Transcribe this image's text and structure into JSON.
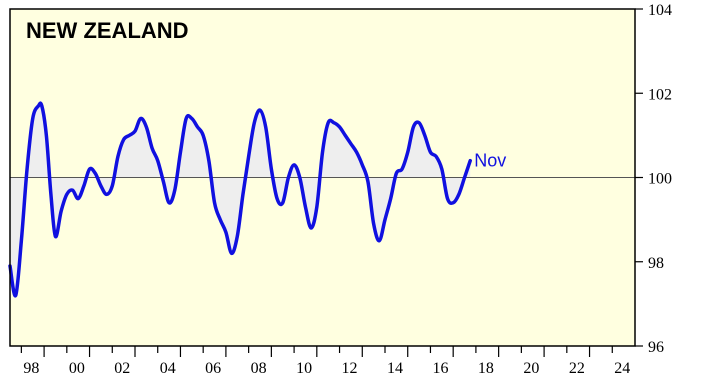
{
  "chart_data": {
    "type": "line",
    "title": "NEW ZEALAND",
    "end_label": "Nov",
    "baseline": 100,
    "ylim": [
      96,
      104
    ],
    "y_ticks": [
      96,
      98,
      100,
      102,
      104
    ],
    "xlim": [
      1997.5,
      2025
    ],
    "x_ticks": [
      {
        "year": 1998,
        "label": "98"
      },
      {
        "year": 2000,
        "label": "00"
      },
      {
        "year": 2002,
        "label": "02"
      },
      {
        "year": 2004,
        "label": "04"
      },
      {
        "year": 2006,
        "label": "06"
      },
      {
        "year": 2008,
        "label": "08"
      },
      {
        "year": 2010,
        "label": "10"
      },
      {
        "year": 2012,
        "label": "12"
      },
      {
        "year": 2014,
        "label": "14"
      },
      {
        "year": 2016,
        "label": "16"
      },
      {
        "year": 2018,
        "label": "18"
      },
      {
        "year": 2020,
        "label": "20"
      },
      {
        "year": 2022,
        "label": "22"
      },
      {
        "year": 2024,
        "label": "24"
      }
    ],
    "colors": {
      "plot_background": "#ffffe0",
      "line": "#1010e0",
      "fill": "#eeeeee",
      "baseline": "#555555"
    },
    "series": [
      {
        "values": [
          [
            1997.5,
            97.9
          ],
          [
            1997.75,
            97.2
          ],
          [
            1998.0,
            98.5
          ],
          [
            1998.25,
            100.2
          ],
          [
            1998.5,
            101.4
          ],
          [
            1998.75,
            101.7
          ],
          [
            1998.9,
            101.7
          ],
          [
            1999.1,
            101.0
          ],
          [
            1999.3,
            99.6
          ],
          [
            1999.5,
            98.6
          ],
          [
            1999.75,
            99.2
          ],
          [
            2000.0,
            99.6
          ],
          [
            2000.25,
            99.7
          ],
          [
            2000.5,
            99.5
          ],
          [
            2000.75,
            99.8
          ],
          [
            2001.0,
            100.2
          ],
          [
            2001.25,
            100.1
          ],
          [
            2001.5,
            99.8
          ],
          [
            2001.75,
            99.6
          ],
          [
            2002.0,
            99.8
          ],
          [
            2002.25,
            100.5
          ],
          [
            2002.5,
            100.9
          ],
          [
            2002.75,
            101.0
          ],
          [
            2003.0,
            101.1
          ],
          [
            2003.25,
            101.4
          ],
          [
            2003.5,
            101.2
          ],
          [
            2003.75,
            100.7
          ],
          [
            2004.0,
            100.4
          ],
          [
            2004.25,
            99.9
          ],
          [
            2004.5,
            99.4
          ],
          [
            2004.75,
            99.7
          ],
          [
            2005.0,
            100.6
          ],
          [
            2005.25,
            101.4
          ],
          [
            2005.5,
            101.4
          ],
          [
            2005.75,
            101.2
          ],
          [
            2006.0,
            101.0
          ],
          [
            2006.25,
            100.4
          ],
          [
            2006.5,
            99.4
          ],
          [
            2006.75,
            99.0
          ],
          [
            2007.0,
            98.7
          ],
          [
            2007.25,
            98.2
          ],
          [
            2007.5,
            98.6
          ],
          [
            2007.75,
            99.6
          ],
          [
            2008.0,
            100.5
          ],
          [
            2008.25,
            101.3
          ],
          [
            2008.5,
            101.6
          ],
          [
            2008.75,
            101.2
          ],
          [
            2009.0,
            100.2
          ],
          [
            2009.25,
            99.5
          ],
          [
            2009.5,
            99.4
          ],
          [
            2009.75,
            100.0
          ],
          [
            2010.0,
            100.3
          ],
          [
            2010.25,
            100.0
          ],
          [
            2010.5,
            99.3
          ],
          [
            2010.75,
            98.8
          ],
          [
            2011.0,
            99.3
          ],
          [
            2011.25,
            100.6
          ],
          [
            2011.5,
            101.3
          ],
          [
            2011.75,
            101.3
          ],
          [
            2012.0,
            101.2
          ],
          [
            2012.25,
            101.0
          ],
          [
            2012.5,
            100.8
          ],
          [
            2012.75,
            100.6
          ],
          [
            2013.0,
            100.3
          ],
          [
            2013.25,
            99.9
          ],
          [
            2013.5,
            98.9
          ],
          [
            2013.75,
            98.5
          ],
          [
            2014.0,
            99.0
          ],
          [
            2014.25,
            99.5
          ],
          [
            2014.5,
            100.1
          ],
          [
            2014.75,
            100.2
          ],
          [
            2015.0,
            100.6
          ],
          [
            2015.25,
            101.2
          ],
          [
            2015.5,
            101.3
          ],
          [
            2015.75,
            101.0
          ],
          [
            2016.0,
            100.6
          ],
          [
            2016.25,
            100.5
          ],
          [
            2016.5,
            100.2
          ],
          [
            2016.75,
            99.5
          ],
          [
            2017.0,
            99.4
          ],
          [
            2017.25,
            99.6
          ],
          [
            2017.5,
            100.0
          ],
          [
            2017.75,
            100.4
          ]
        ]
      }
    ]
  }
}
